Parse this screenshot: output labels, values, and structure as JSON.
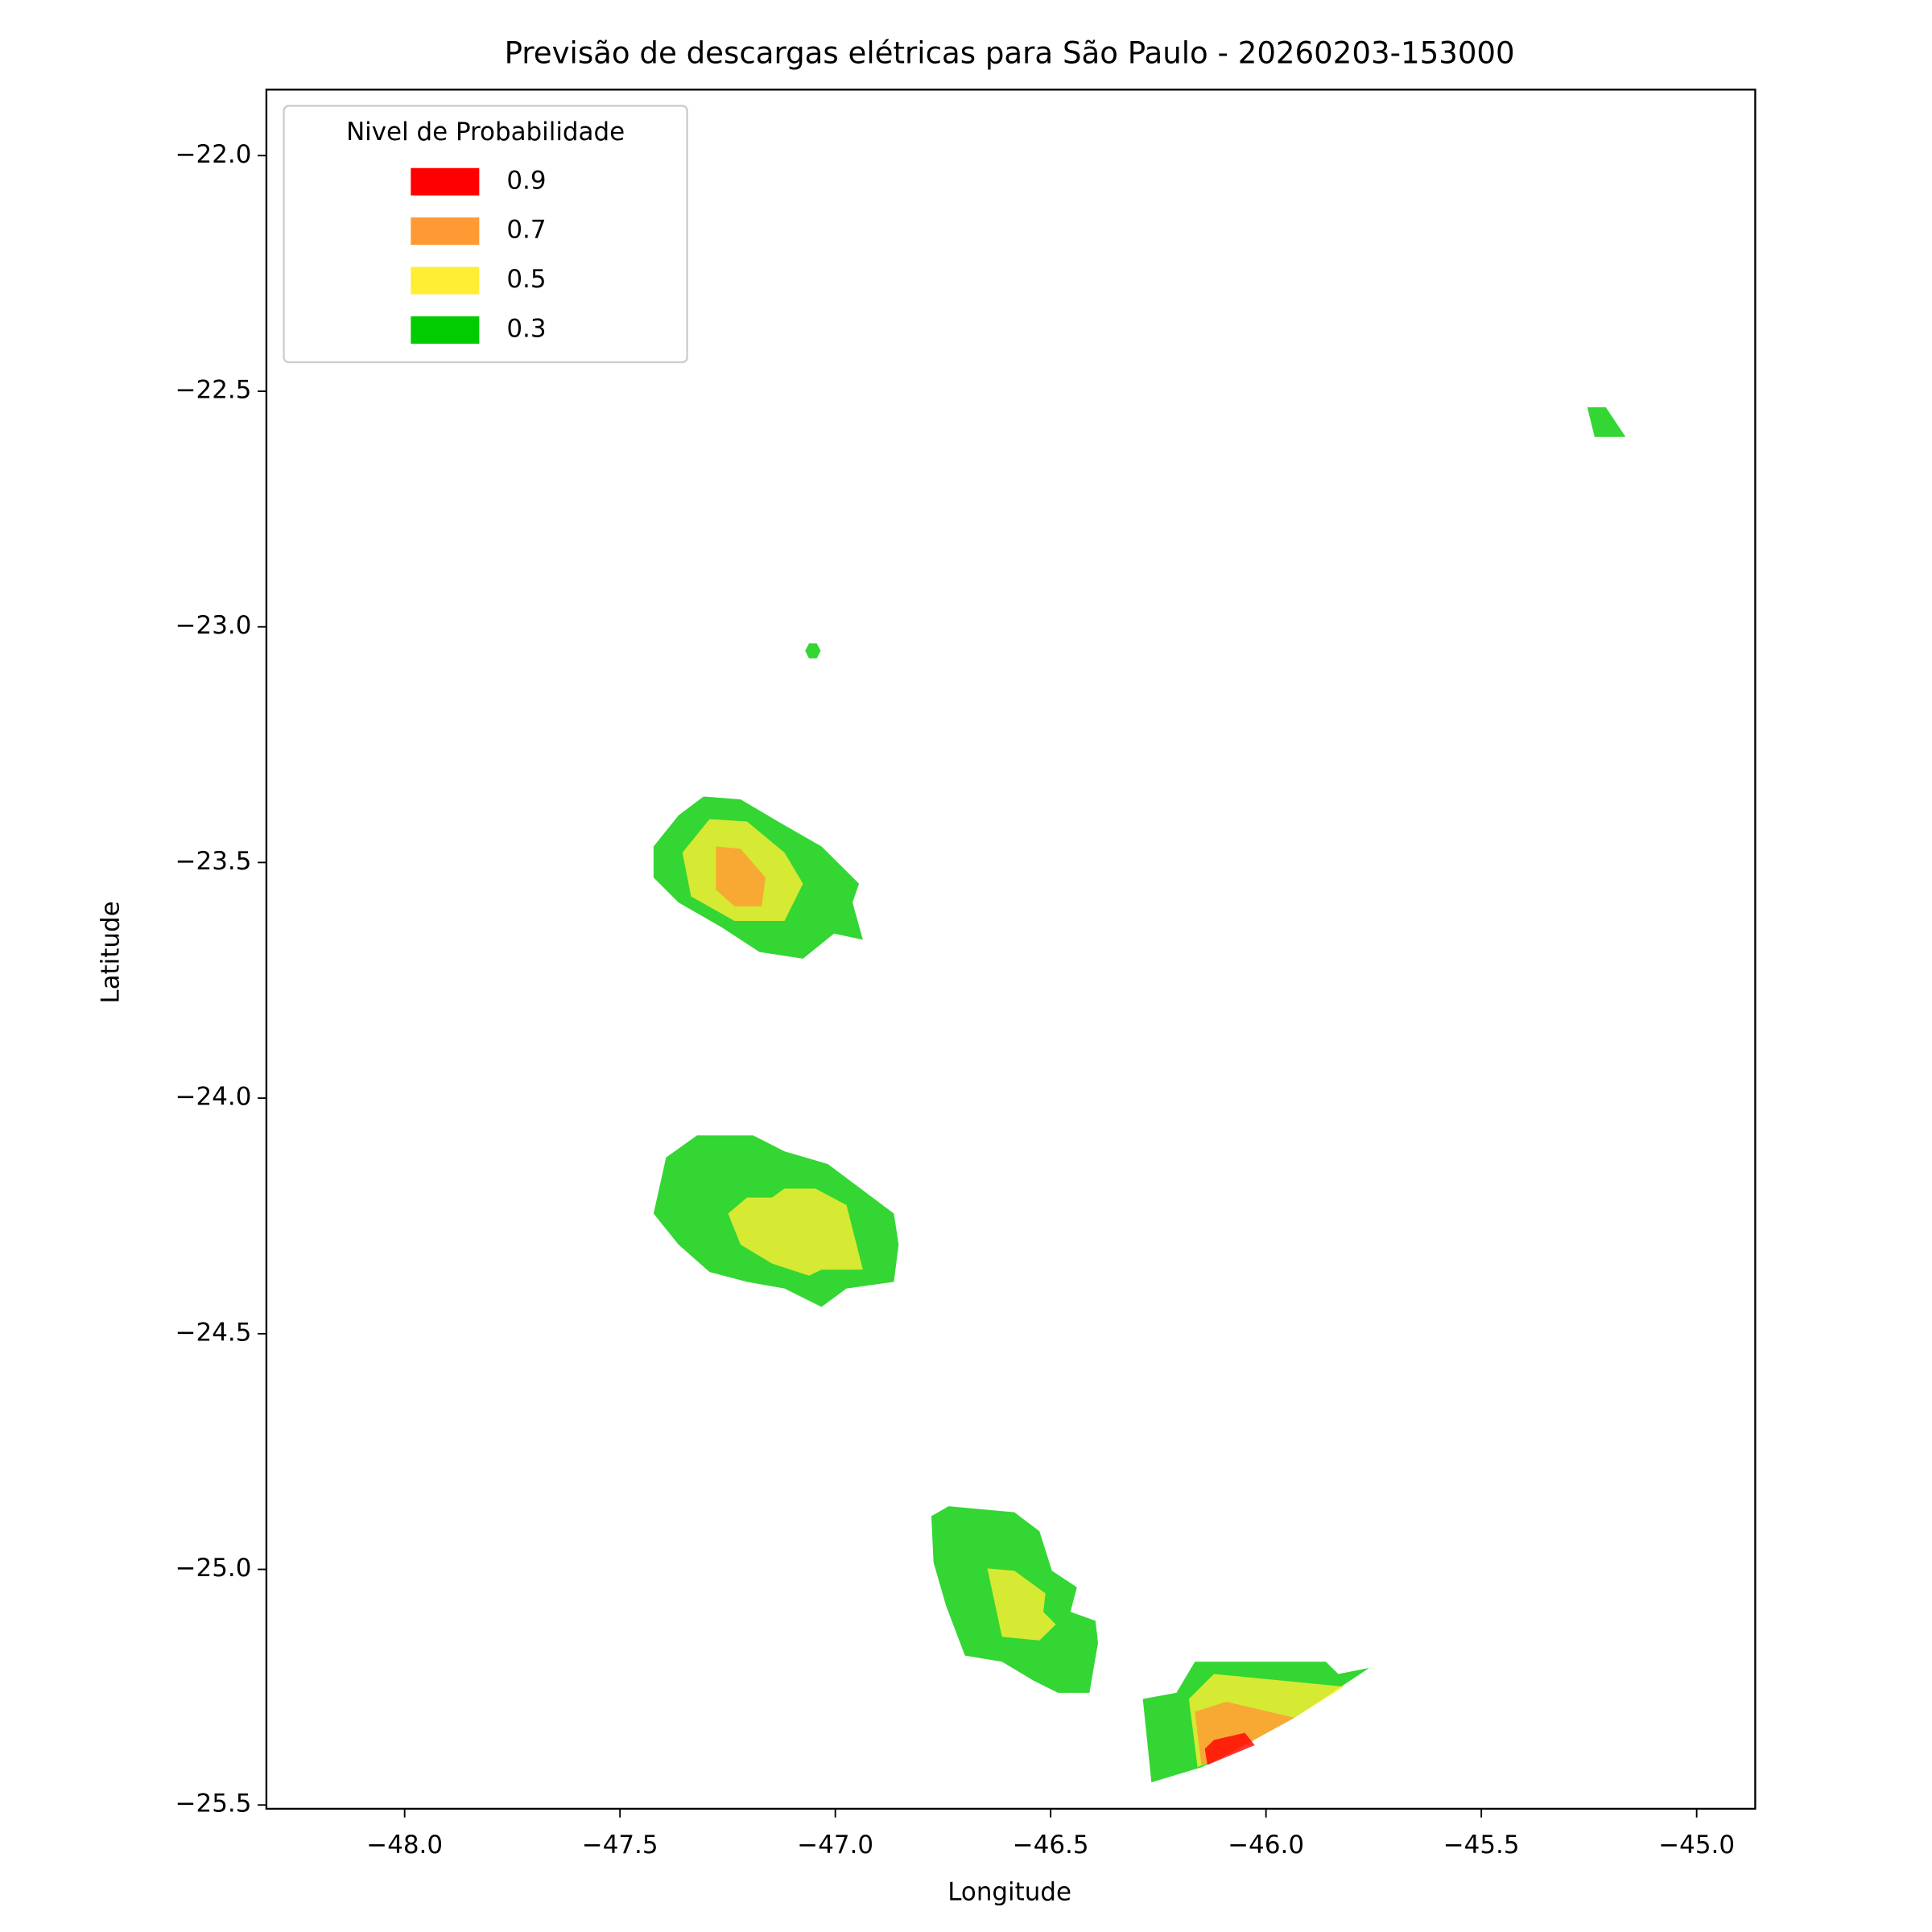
{
  "chart_data": {
    "type": "contour",
    "title": "Previsão de descargas elétricas para São Paulo - 20260203-153000",
    "x_label": "Longitude",
    "y_label": "Latitude",
    "xlim": [
      -48.321,
      -44.864
    ],
    "ylim": [
      -25.508,
      -21.86
    ],
    "xticks": [
      {
        "value": -48,
        "label": "−48.0"
      },
      {
        "value": -47.5,
        "label": "−47.5"
      },
      {
        "value": -47,
        "label": "−47.0"
      },
      {
        "value": -46.5,
        "label": "−46.5"
      },
      {
        "value": -46,
        "label": "−46.0"
      },
      {
        "value": -45.5,
        "label": "−45.5"
      },
      {
        "value": -45,
        "label": "−45.0"
      }
    ],
    "yticks": [
      {
        "value": -22,
        "label": "−22.0"
      },
      {
        "value": -22.5,
        "label": "−22.5"
      },
      {
        "value": -23,
        "label": "−23.0"
      },
      {
        "value": -23.5,
        "label": "−23.5"
      },
      {
        "value": -24,
        "label": "−24.0"
      },
      {
        "value": -24.5,
        "label": "−24.5"
      },
      {
        "value": -25,
        "label": "−25.0"
      },
      {
        "value": -25.5,
        "label": "−25.5"
      }
    ],
    "legend_title": "Nivel de Probabilidade",
    "legend_position": "upper left",
    "alpha": 0.8,
    "series": [
      {
        "name": "0.9",
        "color": "#ff0000",
        "polygons": [
          [
            [
              -46.142,
              -25.381
            ],
            [
              -46.121,
              -25.362
            ],
            [
              -46.049,
              -25.347
            ],
            [
              -46.026,
              -25.373
            ],
            [
              -46.136,
              -25.415
            ]
          ]
        ]
      },
      {
        "name": "0.7",
        "color": "#ff9933",
        "polygons": [
          [
            [
              -47.277,
              -23.466
            ],
            [
              -47.22,
              -23.471
            ],
            [
              -47.162,
              -23.532
            ],
            [
              -47.171,
              -23.593
            ],
            [
              -47.234,
              -23.593
            ],
            [
              -47.277,
              -23.558
            ]
          ],
          [
            [
              -46.165,
              -25.302
            ],
            [
              -46.092,
              -25.281
            ],
            [
              -45.934,
              -25.315
            ],
            [
              -46.092,
              -25.394
            ],
            [
              -46.15,
              -25.415
            ]
          ]
        ]
      },
      {
        "name": "0.5",
        "color": "#ffee33",
        "polygons": [
          [
            [
              -47.355,
              -23.479
            ],
            [
              -47.292,
              -23.408
            ],
            [
              -47.205,
              -23.413
            ],
            [
              -47.118,
              -23.479
            ],
            [
              -47.075,
              -23.545
            ],
            [
              -47.118,
              -23.624
            ],
            [
              -47.234,
              -23.624
            ],
            [
              -47.335,
              -23.572
            ]
          ],
          [
            [
              -47.249,
              -24.245
            ],
            [
              -47.205,
              -24.211
            ],
            [
              -47.147,
              -24.211
            ],
            [
              -47.118,
              -24.192
            ],
            [
              -47.046,
              -24.192
            ],
            [
              -46.974,
              -24.227
            ],
            [
              -46.936,
              -24.364
            ],
            [
              -47.032,
              -24.364
            ],
            [
              -47.061,
              -24.377
            ],
            [
              -47.147,
              -24.351
            ],
            [
              -47.22,
              -24.311
            ]
          ],
          [
            [
              -46.647,
              -24.998
            ],
            [
              -46.584,
              -25.003
            ],
            [
              -46.512,
              -25.051
            ],
            [
              -46.517,
              -25.09
            ],
            [
              -46.488,
              -25.117
            ],
            [
              -46.526,
              -25.151
            ],
            [
              -46.613,
              -25.143
            ]
          ],
          [
            [
              -46.179,
              -25.275
            ],
            [
              -46.121,
              -25.222
            ],
            [
              -45.818,
              -25.249
            ],
            [
              -45.934,
              -25.315
            ],
            [
              -46.092,
              -25.394
            ],
            [
              -46.159,
              -25.42
            ]
          ]
        ]
      },
      {
        "name": "0.3",
        "color": "#00cc00",
        "polygons": [
          [
            [
              -47.422,
              -23.466
            ],
            [
              -47.364,
              -23.4
            ],
            [
              -47.306,
              -23.36
            ],
            [
              -47.22,
              -23.366
            ],
            [
              -47.133,
              -23.413
            ],
            [
              -47.032,
              -23.466
            ],
            [
              -46.945,
              -23.545
            ],
            [
              -46.96,
              -23.585
            ],
            [
              -46.936,
              -23.664
            ],
            [
              -47.003,
              -23.651
            ],
            [
              -47.075,
              -23.704
            ],
            [
              -47.176,
              -23.69
            ],
            [
              -47.263,
              -23.638
            ],
            [
              -47.364,
              -23.585
            ],
            [
              -47.422,
              -23.532
            ]
          ],
          [
            [
              -47.07,
              -23.051
            ],
            [
              -47.061,
              -23.035
            ],
            [
              -47.043,
              -23.035
            ],
            [
              -47.034,
              -23.051
            ],
            [
              -47.043,
              -23.067
            ],
            [
              -47.061,
              -23.067
            ]
          ],
          [
            [
              -45.254,
              -22.534
            ],
            [
              -45.211,
              -22.534
            ],
            [
              -45.165,
              -22.597
            ],
            [
              -45.237,
              -22.597
            ]
          ],
          [
            [
              -47.422,
              -24.245
            ],
            [
              -47.393,
              -24.126
            ],
            [
              -47.321,
              -24.079
            ],
            [
              -47.191,
              -24.079
            ],
            [
              -47.118,
              -24.113
            ],
            [
              -47.017,
              -24.14
            ],
            [
              -46.864,
              -24.245
            ],
            [
              -46.853,
              -24.311
            ],
            [
              -46.864,
              -24.39
            ],
            [
              -46.974,
              -24.404
            ],
            [
              -47.032,
              -24.443
            ],
            [
              -47.118,
              -24.404
            ],
            [
              -47.205,
              -24.39
            ],
            [
              -47.292,
              -24.369
            ],
            [
              -47.364,
              -24.311
            ]
          ],
          [
            [
              -46.777,
              -24.887
            ],
            [
              -46.737,
              -24.866
            ],
            [
              -46.642,
              -24.874
            ],
            [
              -46.584,
              -24.879
            ],
            [
              -46.526,
              -24.919
            ],
            [
              -46.497,
              -25.003
            ],
            [
              -46.439,
              -25.038
            ],
            [
              -46.454,
              -25.09
            ],
            [
              -46.396,
              -25.109
            ],
            [
              -46.39,
              -25.156
            ],
            [
              -46.41,
              -25.262
            ],
            [
              -46.483,
              -25.262
            ],
            [
              -46.54,
              -25.236
            ],
            [
              -46.613,
              -25.196
            ],
            [
              -46.699,
              -25.183
            ],
            [
              -46.743,
              -25.077
            ],
            [
              -46.772,
              -24.985
            ]
          ],
          [
            [
              -46.266,
              -25.452
            ],
            [
              -46.286,
              -25.275
            ],
            [
              -46.208,
              -25.262
            ],
            [
              -46.165,
              -25.196
            ],
            [
              -45.861,
              -25.196
            ],
            [
              -45.832,
              -25.222
            ],
            [
              -45.76,
              -25.209
            ],
            [
              -45.934,
              -25.315
            ],
            [
              -46.092,
              -25.394
            ],
            [
              -46.15,
              -25.42
            ]
          ]
        ]
      }
    ]
  }
}
